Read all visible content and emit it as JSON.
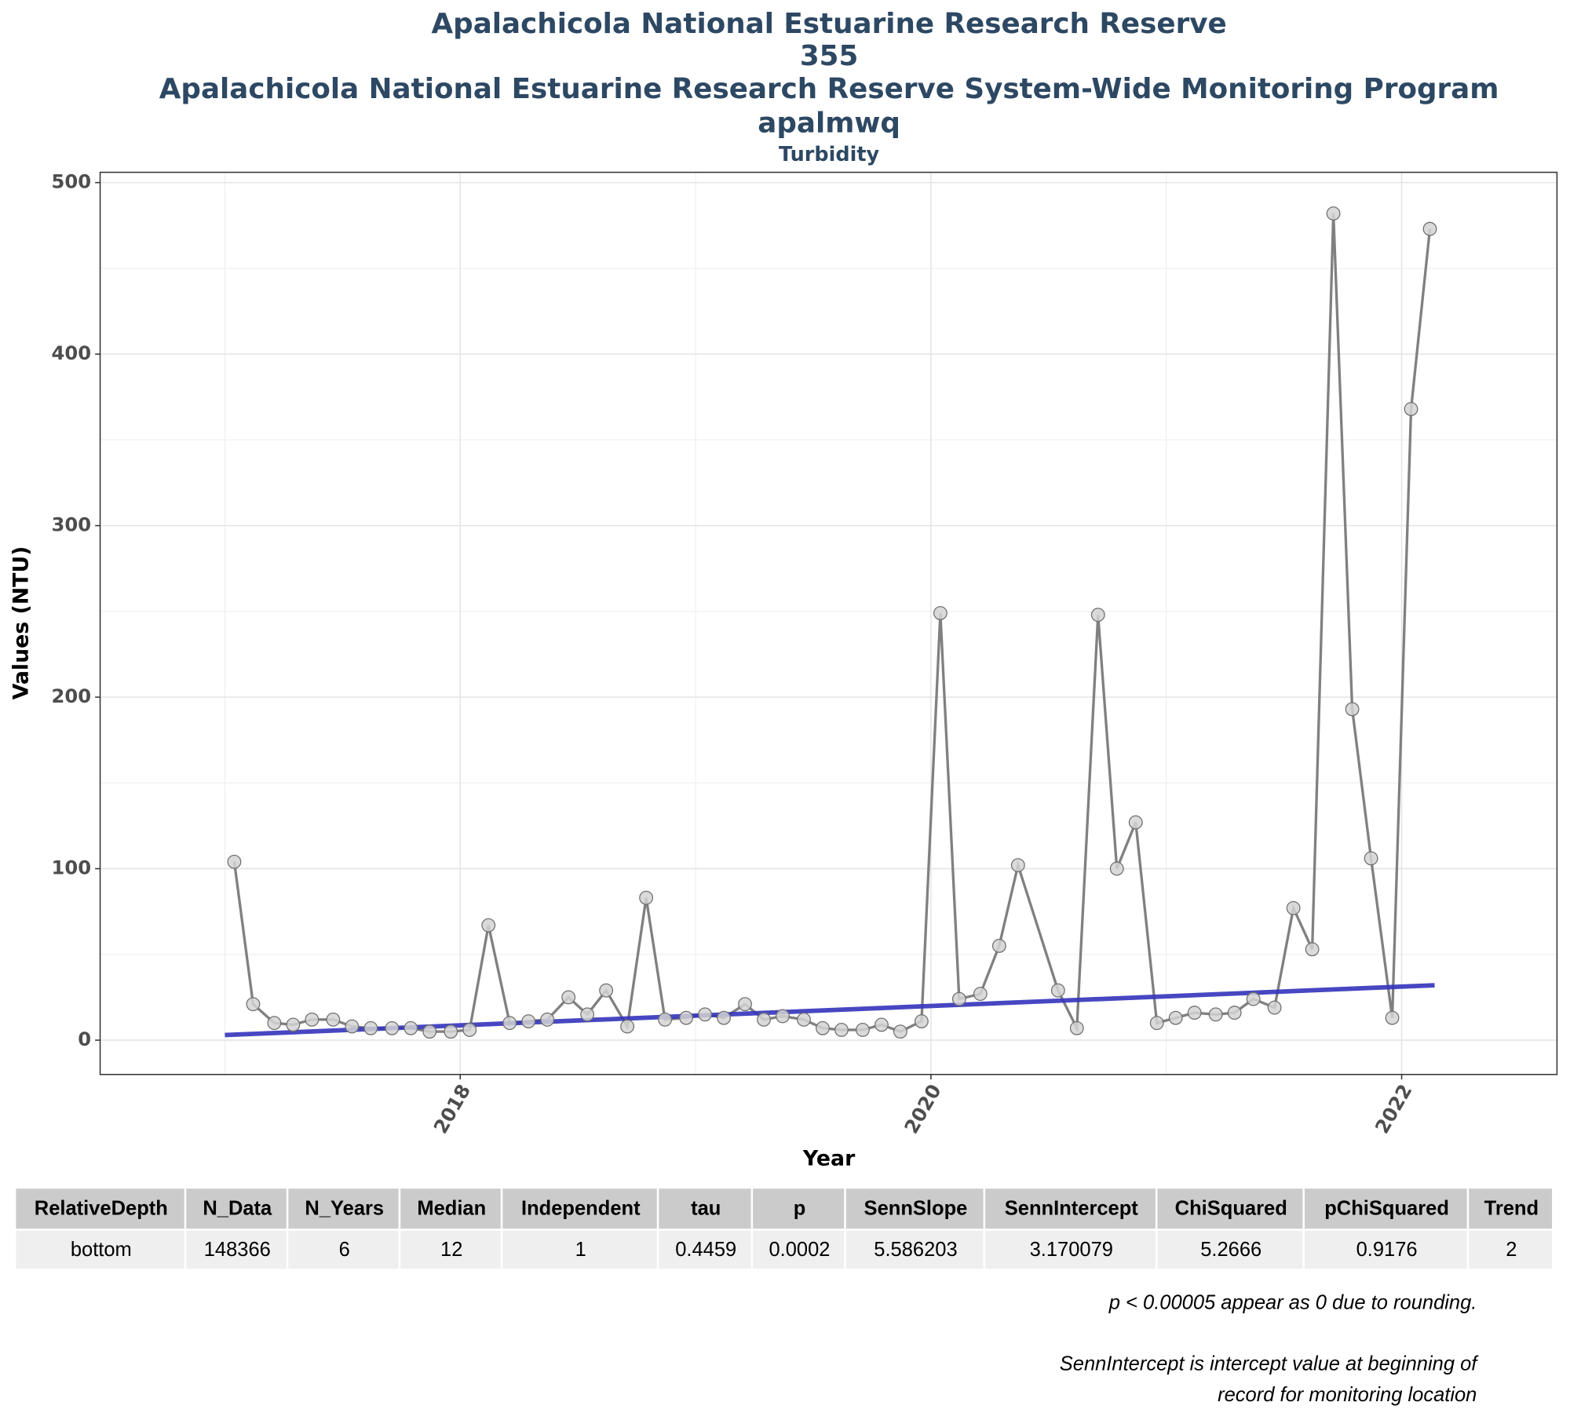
{
  "chart_data": {
    "type": "line",
    "title": [
      "Apalachicola National Estuarine Research Reserve",
      "355",
      "Apalachicola National Estuarine Research Reserve System-Wide Monitoring Program",
      "apalmwq"
    ],
    "subtitle": "Turbidity",
    "xlabel": "Year",
    "ylabel": "Values (NTU)",
    "x": [
      2017.04,
      2017.12,
      2017.21,
      2017.29,
      2017.37,
      2017.46,
      2017.54,
      2017.62,
      2017.71,
      2017.79,
      2017.87,
      2017.96,
      2018.04,
      2018.12,
      2018.21,
      2018.29,
      2018.37,
      2018.46,
      2018.54,
      2018.62,
      2018.71,
      2018.79,
      2018.87,
      2018.96,
      2019.04,
      2019.12,
      2019.21,
      2019.29,
      2019.37,
      2019.46,
      2019.54,
      2019.62,
      2019.71,
      2019.79,
      2019.87,
      2019.96,
      2020.04,
      2020.12,
      2020.21,
      2020.29,
      2020.37,
      2020.54,
      2020.62,
      2020.71,
      2020.79,
      2020.87,
      2020.96,
      2021.04,
      2021.12,
      2021.21,
      2021.29,
      2021.37,
      2021.46,
      2021.54,
      2021.62,
      2021.71,
      2021.79,
      2021.87,
      2021.96,
      2022.04,
      2022.12
    ],
    "series": [
      {
        "color": "#808080",
        "values": [
          104,
          21,
          10,
          9,
          12,
          12,
          8,
          7,
          7,
          7,
          5,
          5,
          6,
          67,
          10,
          11,
          12,
          25,
          15,
          29,
          8,
          83,
          12,
          13,
          15,
          13,
          21,
          12,
          14,
          12,
          7,
          6,
          6,
          9,
          5,
          11,
          249,
          24,
          27,
          55,
          102,
          29,
          7,
          248,
          100,
          127,
          10,
          13,
          16,
          15,
          16,
          24,
          19,
          77,
          53,
          482,
          193,
          106,
          13,
          368,
          473
        ]
      }
    ],
    "trend": {
      "color": "#3333bb",
      "x": [
        2017.0,
        2022.14
      ],
      "values": [
        3,
        32
      ]
    },
    "xlim": [
      2016.47,
      2022.66
    ],
    "xticks": [
      2018,
      2020,
      2022
    ],
    "ylim": [
      -20,
      506
    ],
    "yticks": [
      0,
      100,
      200,
      300,
      400,
      500
    ],
    "grid": true,
    "minor_grid": true
  },
  "table": {
    "columns": [
      "RelativeDepth",
      "N_Data",
      "N_Years",
      "Median",
      "Independent",
      "tau",
      "p",
      "SennSlope",
      "SennIntercept",
      "ChiSquared",
      "pChiSquared",
      "Trend"
    ],
    "rows": [
      [
        "bottom",
        148366,
        6,
        12,
        1,
        0.4459,
        0.0002,
        5.586203,
        3.170079,
        5.2666,
        0.9176,
        2
      ]
    ]
  },
  "notes": [
    "p < 0.00005 appear as 0 due to rounding.",
    "SennIntercept is intercept value at beginning of",
    "record for monitoring location"
  ]
}
